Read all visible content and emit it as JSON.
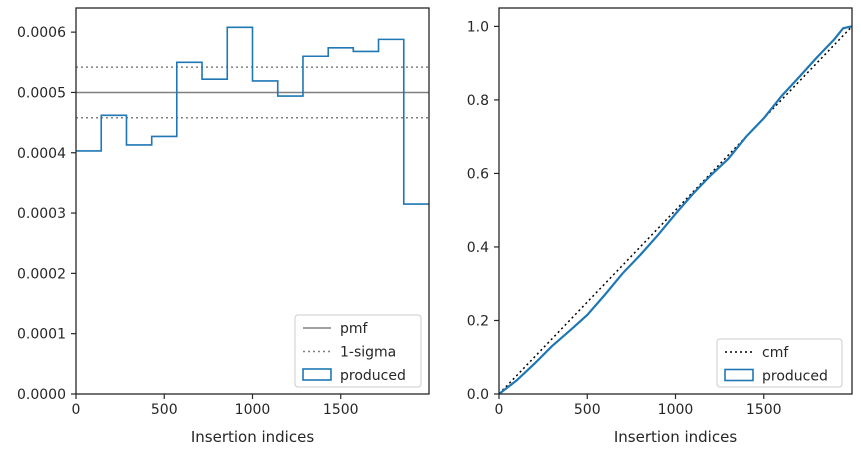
{
  "chart_data": [
    {
      "type": "line",
      "xlabel": "Insertion indices",
      "ylabel": "",
      "xlim": [
        0,
        2000
      ],
      "ylim": [
        0,
        0.00064
      ],
      "xticks": [
        0,
        500,
        1000,
        1500
      ],
      "xtick_labels": [
        "0",
        "500",
        "1000",
        "1500"
      ],
      "yticks": [
        0,
        0.0001,
        0.0002,
        0.0003,
        0.0004,
        0.0005,
        0.0006
      ],
      "ytick_labels": [
        "0.0000",
        "0.0001",
        "0.0002",
        "0.0003",
        "0.0004",
        "0.0005",
        "0.0006"
      ],
      "legend_position": "lower-right",
      "series": [
        {
          "name": "pmf",
          "kind": "hline",
          "y": 0.0005,
          "color": "#808080",
          "style": "solid"
        },
        {
          "name": "1-sigma",
          "kind": "hlines",
          "y": [
            0.000458,
            0.000542
          ],
          "color": "#808080",
          "style": "dotted"
        },
        {
          "name": "produced",
          "kind": "step-histogram",
          "color": "#1f77b4",
          "bin_edges": [
            0,
            143,
            286,
            429,
            571,
            714,
            857,
            1000,
            1143,
            1286,
            1429,
            1571,
            1714,
            1857,
            2000
          ],
          "values": [
            0.000403,
            0.000462,
            0.000413,
            0.000427,
            0.00055,
            0.000522,
            0.000608,
            0.000519,
            0.000494,
            0.00056,
            0.000574,
            0.000568,
            0.000588,
            0.000315
          ]
        }
      ]
    },
    {
      "type": "line",
      "xlabel": "Insertion indices",
      "ylabel": "",
      "xlim": [
        0,
        2000
      ],
      "ylim": [
        0,
        1.05
      ],
      "xticks": [
        0,
        500,
        1000,
        1500
      ],
      "xtick_labels": [
        "0",
        "500",
        "1000",
        "1500"
      ],
      "yticks": [
        0,
        0.2,
        0.4,
        0.6,
        0.8,
        1.0
      ],
      "ytick_labels": [
        "0.0",
        "0.2",
        "0.4",
        "0.6",
        "0.8",
        "1.0"
      ],
      "legend_position": "lower-right",
      "series": [
        {
          "name": "cmf",
          "kind": "line",
          "color": "#000000",
          "style": "dotted",
          "x": [
            0,
            2000
          ],
          "y": [
            0,
            1.0
          ]
        },
        {
          "name": "produced",
          "kind": "line",
          "color": "#1f77b4",
          "style": "solid",
          "x": [
            0,
            100,
            200,
            300,
            400,
            500,
            600,
            700,
            800,
            900,
            1000,
            1100,
            1200,
            1300,
            1400,
            1500,
            1600,
            1700,
            1800,
            1900,
            1950,
            2000
          ],
          "y": [
            0,
            0.037,
            0.082,
            0.13,
            0.172,
            0.215,
            0.27,
            0.328,
            0.378,
            0.432,
            0.49,
            0.545,
            0.595,
            0.64,
            0.7,
            0.75,
            0.81,
            0.862,
            0.915,
            0.965,
            0.995,
            1.0
          ]
        }
      ]
    }
  ]
}
